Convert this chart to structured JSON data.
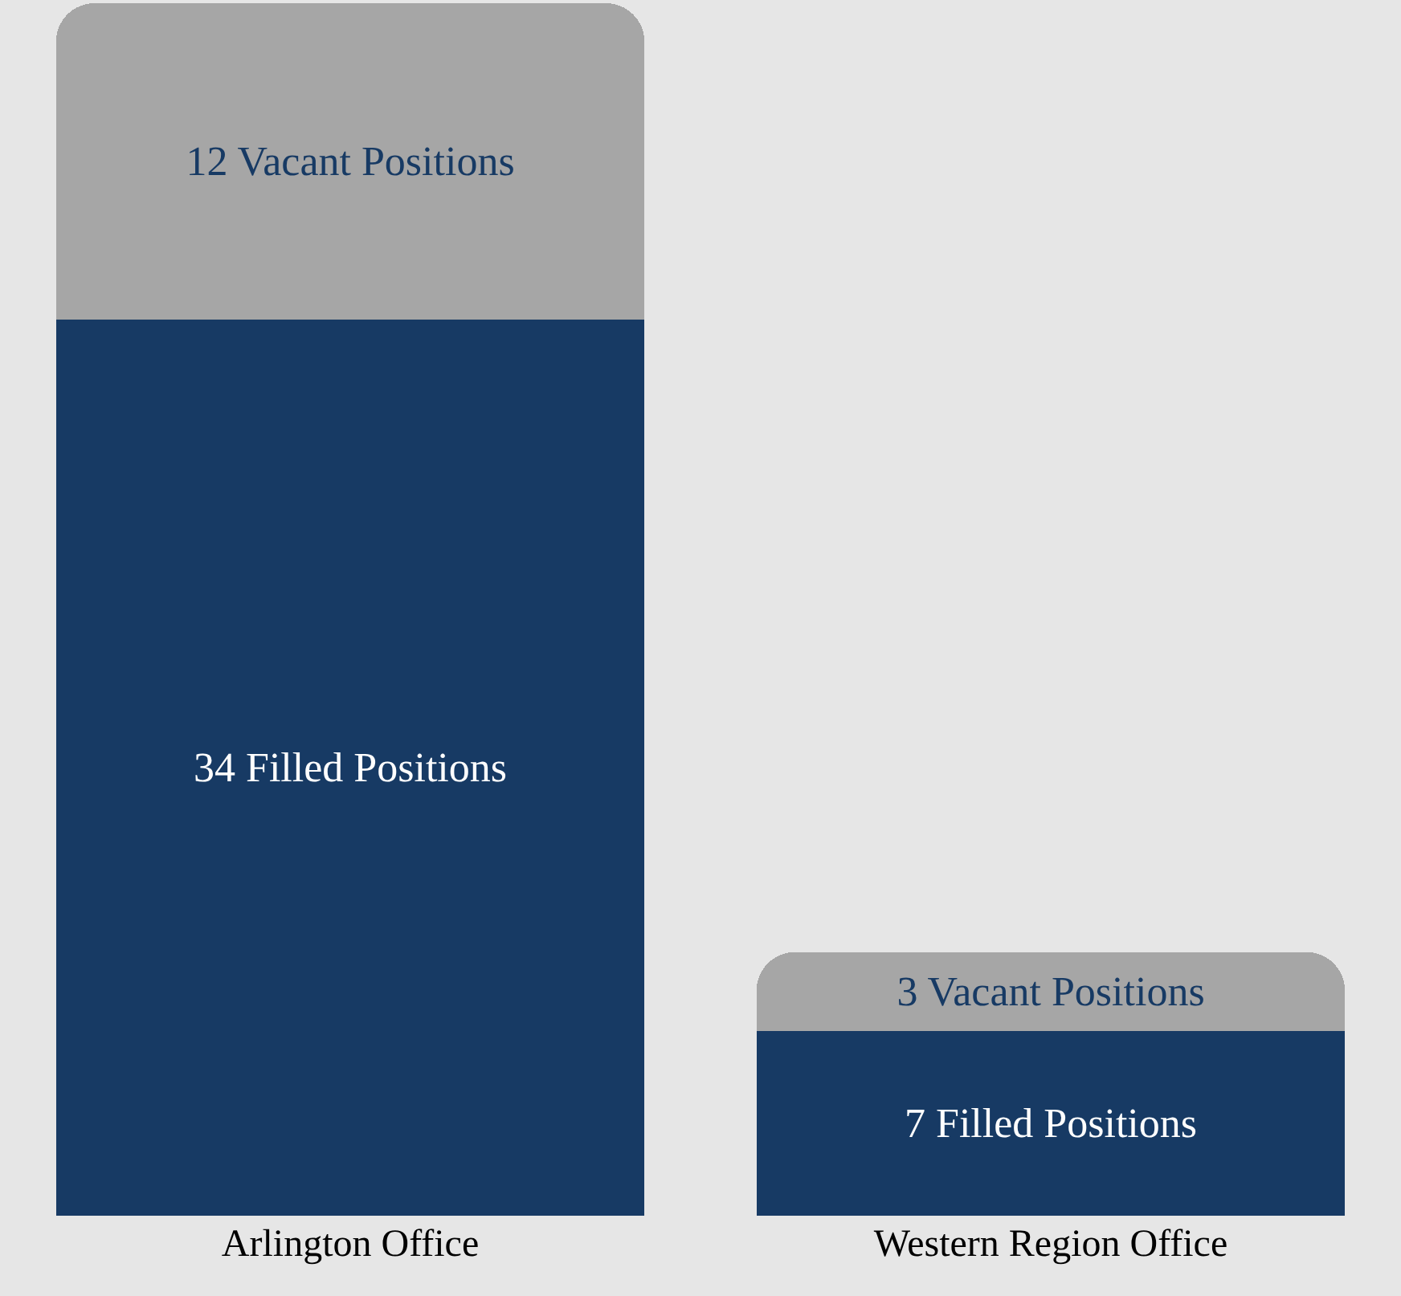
{
  "chart_data": {
    "type": "bar",
    "stacked": true,
    "categories": [
      "Arlington Office",
      "Western Region Office"
    ],
    "series": [
      {
        "color": "#173a64",
        "values": [
          34,
          7
        ],
        "value_labels": [
          "34 Filled Positions",
          "7 Filled Positions"
        ]
      },
      {
        "color": "#a6a6a6",
        "values": [
          12,
          3
        ],
        "value_labels": [
          "12 Vacant Positions",
          "3 Vacant Positions"
        ]
      }
    ],
    "tick_labels": "x"
  }
}
